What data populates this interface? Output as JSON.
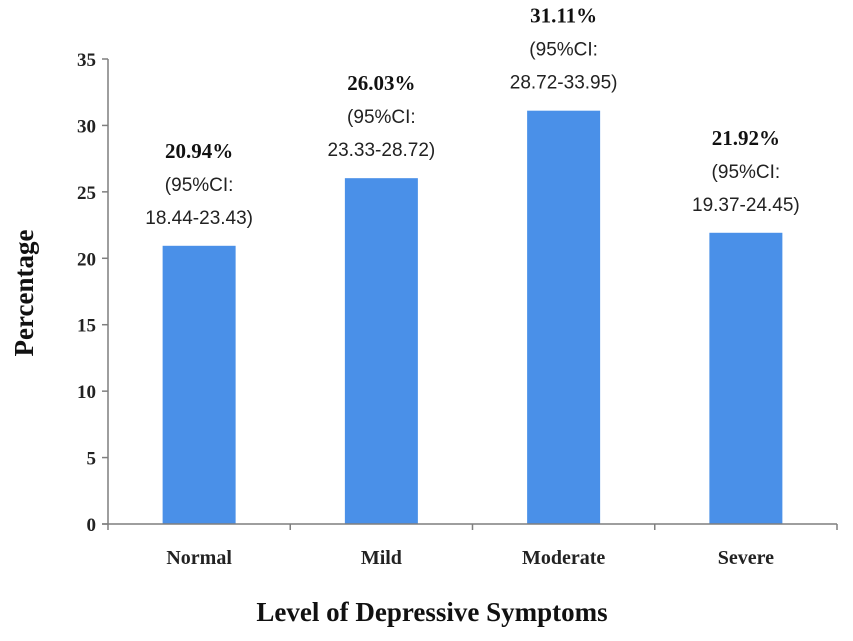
{
  "chart_data": {
    "type": "bar",
    "title": "",
    "xlabel": "Level of Depressive Symptoms",
    "ylabel": "Percentage",
    "ylim": [
      0,
      35
    ],
    "yticks": [
      "0",
      "5",
      "10",
      "15",
      "20",
      "25",
      "30",
      "35"
    ],
    "categories": [
      "Normal",
      "Mild",
      "Moderate",
      "Severe"
    ],
    "values": [
      20.94,
      26.03,
      31.11,
      21.92
    ],
    "labels": [
      {
        "pct": "20.94%",
        "ci_label": "(95%CI:",
        "ci_range": "18.44-23.43)"
      },
      {
        "pct": "26.03%",
        "ci_label": "(95%CI:",
        "ci_range": "23.33-28.72)"
      },
      {
        "pct": "31.11%",
        "ci_label": "(95%CI:",
        "ci_range": "28.72-33.95)"
      },
      {
        "pct": "21.92%",
        "ci_label": "(95%CI:",
        "ci_range": "19.37-24.45)"
      }
    ],
    "bar_color": "#4a90e8",
    "grid": false
  }
}
